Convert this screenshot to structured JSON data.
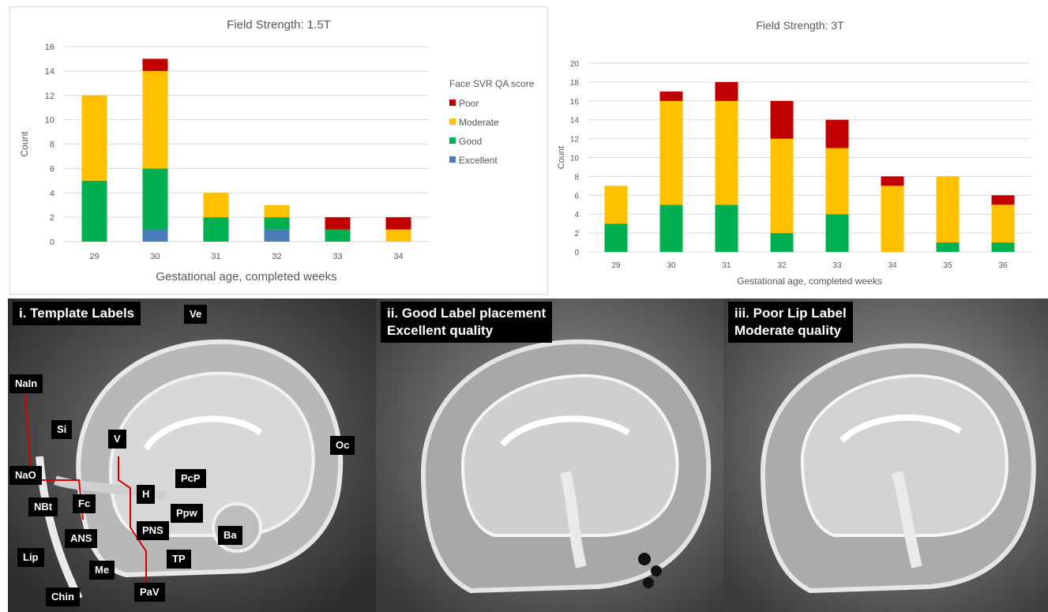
{
  "colors": {
    "excellent": "#4a7ebb",
    "good": "#00b050",
    "moderate": "#ffc000",
    "poor": "#c00000",
    "axis_text": "#595959",
    "grid": "#d9d9d9"
  },
  "chart_data": [
    {
      "type": "bar",
      "stacked": true,
      "title": "Field Strength: 1.5T",
      "xlabel": "Gestational age, completed weeks",
      "ylabel": "Count",
      "categories": [
        "29",
        "30",
        "31",
        "32",
        "33",
        "34"
      ],
      "ylim": [
        0,
        16
      ],
      "yticks": [
        "0",
        "2",
        "4",
        "6",
        "8",
        "10",
        "12",
        "14",
        "16"
      ],
      "legend_title": "Face SVR QA score",
      "legend_position": "right",
      "series": [
        {
          "name": "Excellent",
          "color": "excellent",
          "values": [
            0,
            1,
            0,
            1,
            0,
            0
          ]
        },
        {
          "name": "Good",
          "color": "good",
          "values": [
            5,
            5,
            2,
            1,
            1,
            0
          ]
        },
        {
          "name": "Moderate",
          "color": "moderate",
          "values": [
            7,
            8,
            2,
            1,
            0,
            1
          ]
        },
        {
          "name": "Poor",
          "color": "poor",
          "values": [
            0,
            1,
            0,
            0,
            1,
            1
          ]
        }
      ]
    },
    {
      "type": "bar",
      "stacked": true,
      "title": "Field Strength: 3T",
      "xlabel": "Gestational age, completed weeks",
      "ylabel": "Count",
      "categories": [
        "29",
        "30",
        "31",
        "32",
        "33",
        "34",
        "35",
        "36"
      ],
      "ylim": [
        0,
        20
      ],
      "yticks": [
        "0",
        "2",
        "4",
        "6",
        "8",
        "10",
        "12",
        "14",
        "16",
        "18",
        "20"
      ],
      "series": [
        {
          "name": "Excellent",
          "color": "excellent",
          "values": [
            0,
            0,
            0,
            0,
            0,
            0,
            0,
            0
          ]
        },
        {
          "name": "Good",
          "color": "good",
          "values": [
            3,
            5,
            5,
            2,
            4,
            0,
            1,
            1
          ]
        },
        {
          "name": "Moderate",
          "color": "moderate",
          "values": [
            4,
            11,
            11,
            10,
            7,
            7,
            7,
            4
          ]
        },
        {
          "name": "Poor",
          "color": "poor",
          "values": [
            0,
            1,
            2,
            4,
            3,
            1,
            0,
            1
          ]
        }
      ]
    }
  ],
  "panels": {
    "template": {
      "title": "i. Template Labels",
      "labels": [
        "Ve",
        "NaIn",
        "Si",
        "V",
        "Oc",
        "PcP",
        "NaO",
        "Fc",
        "H",
        "Ppw",
        "NBt",
        "ANS",
        "PNS",
        "Ba",
        "Lip",
        "Me",
        "TP",
        "Chin",
        "PaV"
      ]
    },
    "good": {
      "title": "ii. Good Label placement\nExcellent quality"
    },
    "poor": {
      "title": "iii. Poor Lip Label\nModerate quality"
    }
  }
}
